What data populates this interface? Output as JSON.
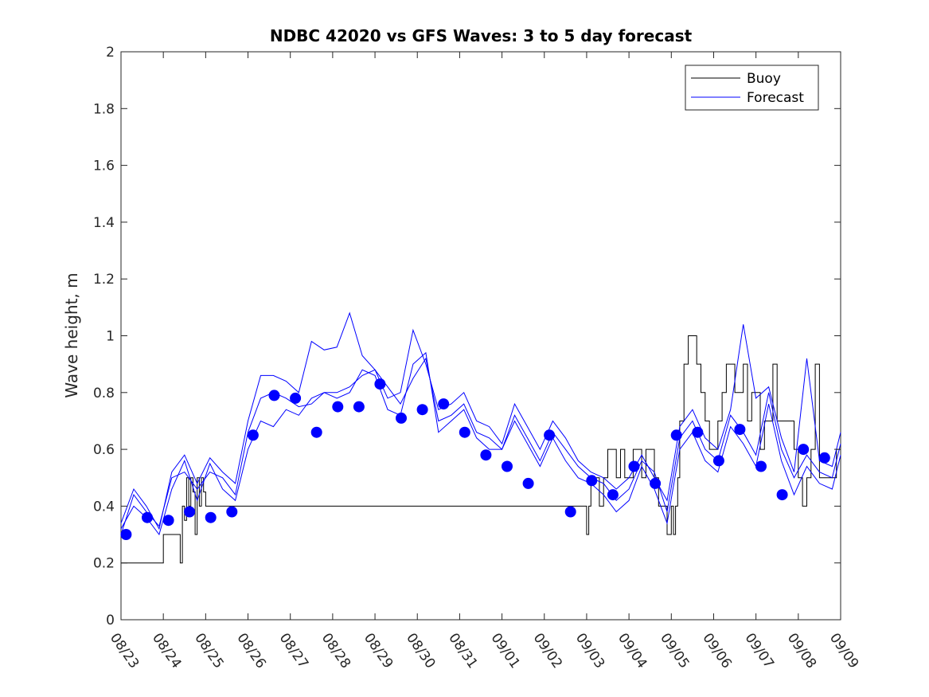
{
  "chart_data": {
    "type": "line",
    "title": "NDBC 42020 vs GFS Waves: 3 to 5 day forecast",
    "xlabel": "",
    "ylabel": "Wave height, m",
    "ylim": [
      0,
      2
    ],
    "yticks": [
      0,
      0.2,
      0.4,
      0.6,
      0.8,
      1,
      1.2,
      1.4,
      1.6,
      1.8,
      2
    ],
    "ytick_labels": [
      "0",
      "0.2",
      "0.4",
      "0.6",
      "0.8",
      "1",
      "1.2",
      "1.4",
      "1.6",
      "1.8",
      "2"
    ],
    "xlim": [
      0,
      17
    ],
    "xtick_labels": [
      "08/23",
      "08/24",
      "08/25",
      "08/26",
      "08/27",
      "08/28",
      "08/29",
      "08/30",
      "08/31",
      "09/01",
      "09/02",
      "09/03",
      "09/04",
      "09/05",
      "09/06",
      "09/07",
      "09/08",
      "09/09"
    ],
    "legend": {
      "position": "top-right",
      "entries": [
        "Buoy",
        "Forecast"
      ]
    },
    "colors": {
      "buoy": "#000000",
      "forecast": "#0000ff",
      "markers": "#0000ff"
    },
    "series": [
      {
        "name": "Buoy",
        "style": "step-line",
        "x": [
          0,
          1,
          1.35,
          1.4,
          1.45,
          1.5,
          1.55,
          1.6,
          1.65,
          1.7,
          1.75,
          1.8,
          1.85,
          1.9,
          1.95,
          2.0,
          2.05,
          2.1,
          2.15,
          2.2,
          2.25,
          2.3,
          11.0,
          11.05,
          11.1,
          11.2,
          11.3,
          11.4,
          11.5,
          11.6,
          11.7,
          11.8,
          11.9,
          12.0,
          12.1,
          12.2,
          12.3,
          12.4,
          12.5,
          12.6,
          12.7,
          12.8,
          12.9,
          13.0,
          13.05,
          13.1,
          13.15,
          13.2,
          13.3,
          13.4,
          13.5,
          13.6,
          13.7,
          13.8,
          13.9,
          14.0,
          14.1,
          14.2,
          14.3,
          14.4,
          14.5,
          14.6,
          14.7,
          14.8,
          14.9,
          15.0,
          15.1,
          15.2,
          15.3,
          15.4,
          15.5,
          15.6,
          15.7,
          15.8,
          15.9,
          16.0,
          16.1,
          16.2,
          16.3,
          16.4,
          16.5,
          16.6,
          16.7,
          16.8,
          16.9,
          17.0
        ],
        "values": [
          0.2,
          0.3,
          0.3,
          0.2,
          0.4,
          0.35,
          0.5,
          0.4,
          0.5,
          0.45,
          0.3,
          0.5,
          0.4,
          0.5,
          0.45,
          0.4,
          0.4,
          0.4,
          0.4,
          0.4,
          0.4,
          0.4,
          0.3,
          0.4,
          0.5,
          0.5,
          0.4,
          0.5,
          0.6,
          0.6,
          0.5,
          0.6,
          0.5,
          0.5,
          0.6,
          0.6,
          0.5,
          0.6,
          0.6,
          0.5,
          0.4,
          0.4,
          0.3,
          0.4,
          0.3,
          0.4,
          0.5,
          0.7,
          0.9,
          1.0,
          1.0,
          0.9,
          0.8,
          0.7,
          0.6,
          0.6,
          0.7,
          0.8,
          0.9,
          0.9,
          0.8,
          0.8,
          0.9,
          0.7,
          0.8,
          0.8,
          0.6,
          0.7,
          0.7,
          0.9,
          0.7,
          0.7,
          0.7,
          0.7,
          0.6,
          0.5,
          0.4,
          0.5,
          0.6,
          0.9,
          0.5,
          0.5,
          0.5,
          0.5,
          0.6,
          0.6
        ]
      },
      {
        "name": "Forecast",
        "x": [
          0,
          0.3,
          0.6,
          0.9,
          1.2,
          1.5,
          1.8,
          2.1,
          2.4,
          2.7,
          3.0,
          3.3,
          3.6,
          3.9,
          4.2,
          4.5,
          4.8,
          5.1,
          5.4,
          5.7,
          6.0,
          6.3,
          6.6,
          6.9,
          7.2,
          7.5,
          7.8,
          8.1,
          8.4,
          8.7,
          9.0,
          9.3,
          9.6,
          9.9,
          10.2,
          10.5,
          10.8,
          11.1,
          11.4,
          11.7,
          12.0,
          12.3,
          12.6,
          12.9,
          13.2,
          13.5,
          13.8,
          14.1,
          14.4,
          14.7,
          15.0,
          15.3,
          15.6,
          15.9,
          16.2,
          16.5,
          16.8,
          17.0
        ],
        "values": [
          0.3,
          0.44,
          0.38,
          0.33,
          0.5,
          0.52,
          0.46,
          0.52,
          0.5,
          0.44,
          0.66,
          0.78,
          0.8,
          0.78,
          0.75,
          0.76,
          0.8,
          0.8,
          0.82,
          0.86,
          0.88,
          0.82,
          0.76,
          0.85,
          0.92,
          0.7,
          0.72,
          0.76,
          0.66,
          0.64,
          0.6,
          0.72,
          0.64,
          0.56,
          0.66,
          0.6,
          0.54,
          0.5,
          0.48,
          0.42,
          0.46,
          0.56,
          0.52,
          0.38,
          0.64,
          0.7,
          0.6,
          0.56,
          0.72,
          0.66,
          0.58,
          0.8,
          0.6,
          0.5,
          0.58,
          0.52,
          0.5,
          0.62
        ]
      },
      {
        "name": "Forecast",
        "x": [
          0,
          0.3,
          0.6,
          0.9,
          1.2,
          1.5,
          1.8,
          2.1,
          2.4,
          2.7,
          3.0,
          3.3,
          3.6,
          3.9,
          4.2,
          4.5,
          4.8,
          5.1,
          5.4,
          5.7,
          6.0,
          6.3,
          6.6,
          6.9,
          7.2,
          7.5,
          7.8,
          8.1,
          8.4,
          8.7,
          9.0,
          9.3,
          9.6,
          9.9,
          10.2,
          10.5,
          10.8,
          11.1,
          11.4,
          11.7,
          12.0,
          12.3,
          12.6,
          12.9,
          13.2,
          13.5,
          13.8,
          14.1,
          14.4,
          14.7,
          15.0,
          15.3,
          15.6,
          15.9,
          16.2,
          16.5,
          16.8,
          17.0
        ],
        "values": [
          0.32,
          0.4,
          0.36,
          0.3,
          0.46,
          0.56,
          0.42,
          0.55,
          0.46,
          0.42,
          0.6,
          0.7,
          0.68,
          0.74,
          0.72,
          0.78,
          0.8,
          0.78,
          0.8,
          0.88,
          0.86,
          0.74,
          0.72,
          0.9,
          0.94,
          0.66,
          0.7,
          0.74,
          0.64,
          0.6,
          0.6,
          0.7,
          0.62,
          0.54,
          0.64,
          0.56,
          0.5,
          0.48,
          0.44,
          0.38,
          0.42,
          0.54,
          0.46,
          0.34,
          0.6,
          0.66,
          0.56,
          0.52,
          0.68,
          0.62,
          0.54,
          0.76,
          0.56,
          0.44,
          0.54,
          0.48,
          0.46,
          0.58
        ]
      },
      {
        "name": "Forecast",
        "x": [
          0,
          0.3,
          0.6,
          0.9,
          1.2,
          1.5,
          1.8,
          2.1,
          2.4,
          2.7,
          3.0,
          3.3,
          3.6,
          3.9,
          4.2,
          4.5,
          4.8,
          5.1,
          5.4,
          5.7,
          6.0,
          6.3,
          6.6,
          6.9,
          7.2,
          7.5,
          7.8,
          8.1,
          8.4,
          8.7,
          9.0,
          9.3,
          9.6,
          9.9,
          10.2,
          10.5,
          10.8,
          11.1,
          11.4,
          11.7,
          12.0,
          12.3,
          12.6,
          12.9,
          13.2,
          13.5,
          13.8,
          14.1,
          14.4,
          14.7,
          15.0,
          15.3,
          15.6,
          15.9,
          16.2,
          16.5,
          16.8,
          17.0
        ],
        "values": [
          0.34,
          0.46,
          0.4,
          0.32,
          0.52,
          0.58,
          0.48,
          0.57,
          0.52,
          0.48,
          0.7,
          0.86,
          0.86,
          0.84,
          0.8,
          0.98,
          0.95,
          0.96,
          1.08,
          0.93,
          0.88,
          0.78,
          0.8,
          1.02,
          0.9,
          0.74,
          0.76,
          0.8,
          0.7,
          0.68,
          0.62,
          0.76,
          0.68,
          0.6,
          0.7,
          0.64,
          0.56,
          0.52,
          0.5,
          0.46,
          0.5,
          0.58,
          0.5,
          0.42,
          0.68,
          0.74,
          0.64,
          0.6,
          0.74,
          1.04,
          0.78,
          0.82,
          0.64,
          0.52,
          0.92,
          0.56,
          0.54,
          0.66
        ]
      }
    ],
    "markers": {
      "name": "Forecast mean",
      "x": [
        0.12,
        0.62,
        1.12,
        1.62,
        2.12,
        2.62,
        3.12,
        3.62,
        4.12,
        4.62,
        5.12,
        5.62,
        6.12,
        6.62,
        7.12,
        7.62,
        8.12,
        8.62,
        9.12,
        9.62,
        10.12,
        10.62,
        11.12,
        11.62,
        12.12,
        12.62,
        13.12,
        13.62,
        14.12,
        14.62,
        15.12,
        15.62,
        16.12,
        16.62
      ],
      "values": [
        0.3,
        0.36,
        0.35,
        0.38,
        0.36,
        0.38,
        0.65,
        0.79,
        0.78,
        0.66,
        0.75,
        0.75,
        0.83,
        0.71,
        0.74,
        0.76,
        0.66,
        0.58,
        0.54,
        0.48,
        0.65,
        0.38,
        0.49,
        0.44,
        0.54,
        0.48,
        0.65,
        0.66,
        0.56,
        0.67,
        0.54,
        0.44,
        0.6,
        0.57
      ]
    }
  }
}
